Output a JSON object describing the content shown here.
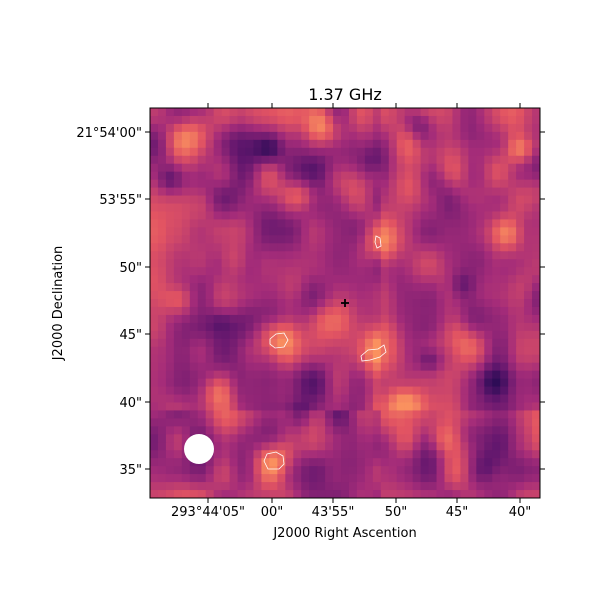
{
  "chart_data": {
    "type": "heatmap",
    "title": "1.37 GHz",
    "xlabel": "J2000 Right Ascention",
    "ylabel": "J2000 Declination",
    "colormap": "magma",
    "x_ticks": [
      "293°44'05\"",
      "00\"",
      "43'55\"",
      "50\"",
      "45\"",
      "40\""
    ],
    "y_ticks": [
      "21°54'00\"",
      "53'55\"",
      "50\"",
      "45\"",
      "40\"",
      "35\""
    ],
    "grid": false,
    "marker": {
      "symbol": "+",
      "color": "#000000"
    },
    "beam": {
      "color": "#ffffff"
    },
    "contour_color": "#ffffff",
    "colors": {
      "low": "#4a1a6b",
      "mid": "#b8407a",
      "high": "#f7825a"
    }
  }
}
